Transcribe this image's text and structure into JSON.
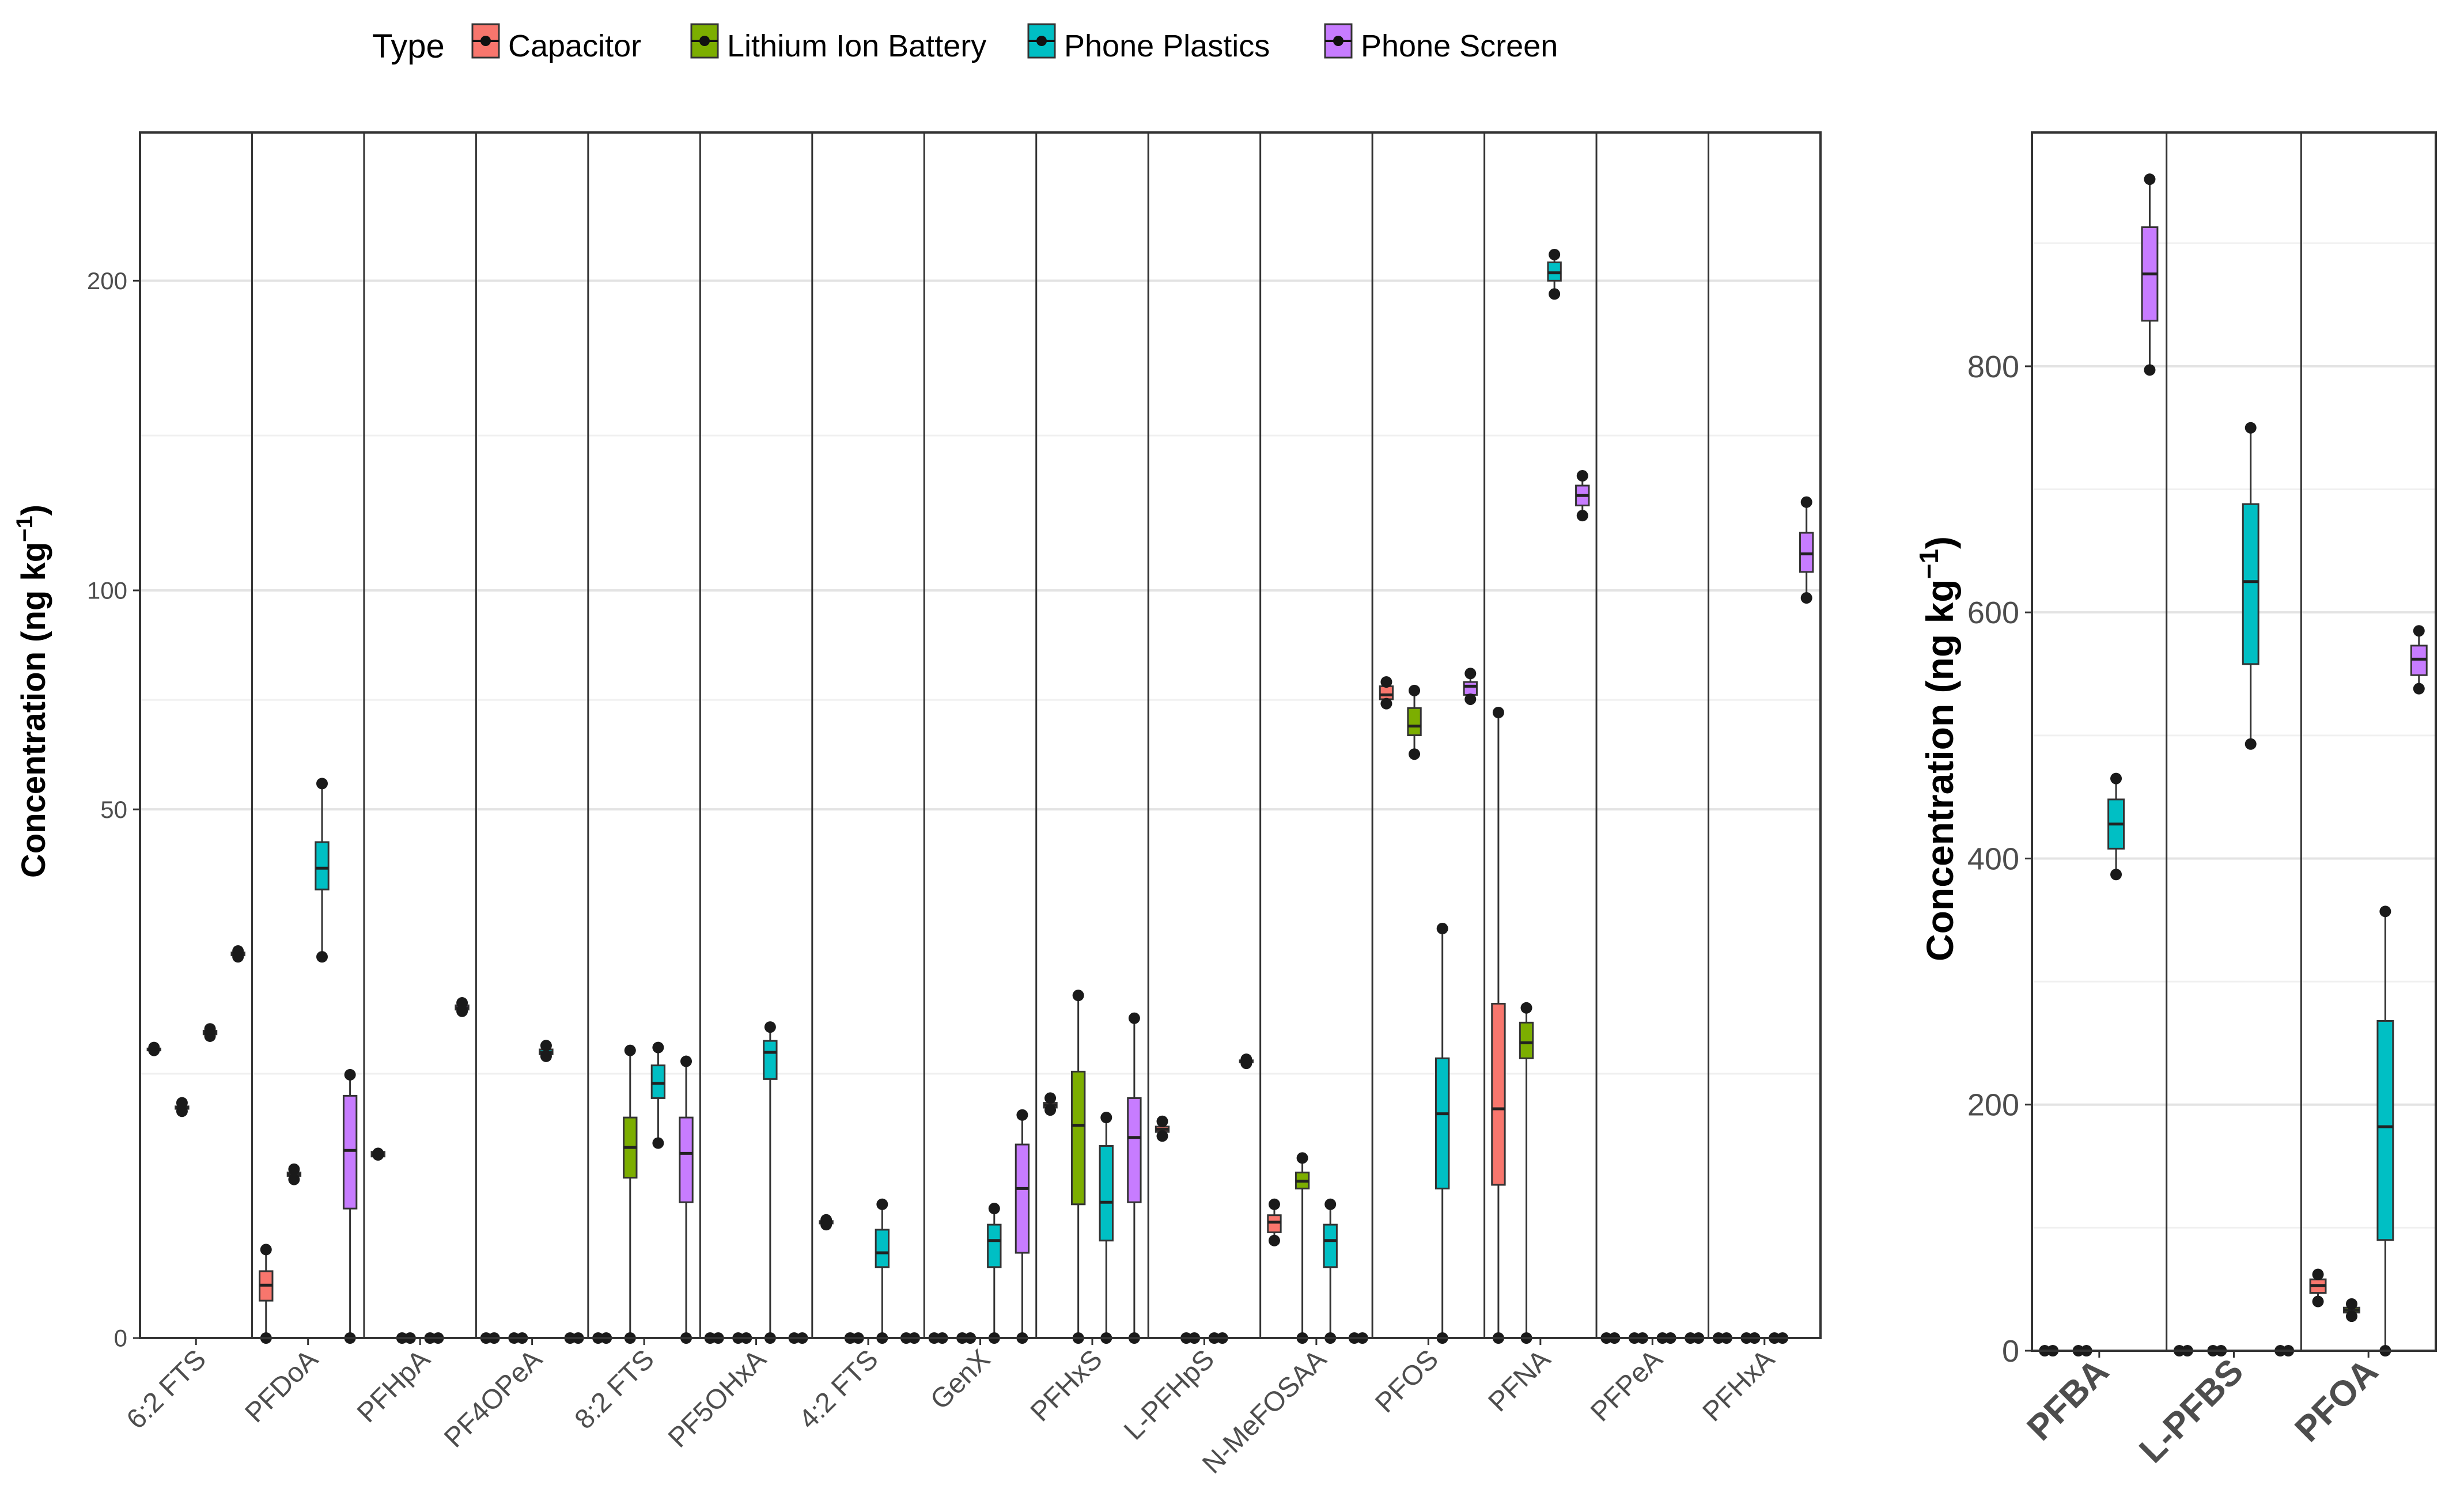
{
  "legend": {
    "title": "Type",
    "position": "top",
    "entries": [
      {
        "label": "Capacitor",
        "color": "#F8766D"
      },
      {
        "label": "Lithium Ion Battery",
        "color": "#7CAE00"
      },
      {
        "label": "Phone Plastics",
        "color": "#00BFC4"
      },
      {
        "label": "Phone Screen",
        "color": "#C77CFF"
      }
    ]
  },
  "chart_data": [
    {
      "type": "boxplot",
      "panel": "left",
      "ylabel_main": "Concentration (ng kg",
      "ylabel_sup": "−1",
      "ylabel_close": ")",
      "y_scale": "sqrt",
      "ylim": [
        0,
        260
      ],
      "y_ticks": [
        0,
        50,
        100,
        200
      ],
      "y_tick_labels": [
        "0",
        "50",
        "100",
        "200"
      ],
      "grid": true,
      "categories": [
        "6:2 FTS",
        "PFDoA",
        "PFHpA",
        "PF4OPeA",
        "8:2 FTS",
        "PF5OHxA",
        "4:2 FTS",
        "GenX",
        "PFHxS",
        "L-PFHpS",
        "N-MeFOSAA",
        "PFOS",
        "PFNA",
        "PFPeA",
        "PFHxA"
      ],
      "series": [
        {
          "name": "Capacitor",
          "boxes": [
            {
              "category": "6:2 FTS",
              "min": 14.8,
              "q1": 14.8,
              "median": 14.9,
              "q3": 15.0,
              "max": 15.1
            },
            {
              "category": "PFDoA",
              "min": 0,
              "q1": 0.25,
              "median": 0.5,
              "q3": 0.8,
              "max": 1.4
            },
            {
              "category": "PFHpA",
              "min": 6.0,
              "q1": 6.0,
              "median": 6.05,
              "q3": 6.1,
              "max": 6.1
            },
            {
              "category": "PF4OPeA",
              "min": 0,
              "q1": 0,
              "median": 0,
              "q3": 0,
              "max": 0
            },
            {
              "category": "8:2 FTS",
              "min": 0,
              "q1": 0,
              "median": 0,
              "q3": 0,
              "max": 0
            },
            {
              "category": "PF5OHxA",
              "min": 0,
              "q1": 0,
              "median": 0,
              "q3": 0,
              "max": 0
            },
            {
              "category": "4:2 FTS",
              "min": 2.3,
              "q1": 2.35,
              "median": 2.4,
              "q3": 2.45,
              "max": 2.5
            },
            {
              "category": "GenX",
              "min": 0,
              "q1": 0,
              "median": 0,
              "q3": 0,
              "max": 0
            },
            {
              "category": "PFHxS",
              "min": 9.3,
              "q1": 9.5,
              "median": 9.7,
              "q3": 9.9,
              "max": 10.3
            },
            {
              "category": "L-PFHpS",
              "min": 7.3,
              "q1": 7.6,
              "median": 7.8,
              "q3": 8.0,
              "max": 8.4
            },
            {
              "category": "N-MeFOSAA",
              "min": 1.7,
              "q1": 2.0,
              "median": 2.4,
              "q3": 2.7,
              "max": 3.2
            },
            {
              "category": "PFOS",
              "min": 72,
              "q1": 73,
              "median": 74,
              "q3": 76,
              "max": 77
            },
            {
              "category": "PFNA",
              "min": 0,
              "q1": 4.2,
              "median": 9.4,
              "q3": 20,
              "max": 70
            },
            {
              "category": "PFPeA",
              "min": 0,
              "q1": 0,
              "median": 0,
              "q3": 0,
              "max": 0
            },
            {
              "category": "PFHxA",
              "min": 0,
              "q1": 0,
              "median": 0,
              "q3": 0,
              "max": 0
            }
          ]
        },
        {
          "name": "Lithium Ion Battery",
          "boxes": [
            {
              "category": "6:2 FTS",
              "min": 9.2,
              "q1": 9.4,
              "median": 9.5,
              "q3": 9.6,
              "max": 9.9
            },
            {
              "category": "PFDoA",
              "min": 4.5,
              "q1": 4.7,
              "median": 4.8,
              "q3": 4.9,
              "max": 5.1
            },
            {
              "category": "PFHpA",
              "min": 0,
              "q1": 0,
              "median": 0,
              "q3": 0,
              "max": 0
            },
            {
              "category": "PF4OPeA",
              "min": 0,
              "q1": 0,
              "median": 0,
              "q3": 0,
              "max": 0
            },
            {
              "category": "8:2 FTS",
              "min": 0,
              "q1": 4.6,
              "median": 6.5,
              "q3": 8.7,
              "max": 14.8
            },
            {
              "category": "PF5OHxA",
              "min": 0,
              "q1": 0,
              "median": 0,
              "q3": 0,
              "max": 0
            },
            {
              "category": "4:2 FTS",
              "min": 0,
              "q1": 0,
              "median": 0,
              "q3": 0,
              "max": 0
            },
            {
              "category": "GenX",
              "min": 0,
              "q1": 0,
              "median": 0,
              "q3": 0,
              "max": 0
            },
            {
              "category": "PFHxS",
              "min": 0,
              "q1": 3.2,
              "median": 8.1,
              "q3": 12.7,
              "max": 21
            },
            {
              "category": "L-PFHpS",
              "min": 0,
              "q1": 0,
              "median": 0,
              "q3": 0,
              "max": 0
            },
            {
              "category": "N-MeFOSAA",
              "min": 0,
              "q1": 4.0,
              "median": 4.4,
              "q3": 4.9,
              "max": 5.8
            },
            {
              "category": "PFOS",
              "min": 61,
              "q1": 65,
              "median": 67,
              "q3": 71,
              "max": 75
            },
            {
              "category": "PFNA",
              "min": 0,
              "q1": 14.0,
              "median": 15.6,
              "q3": 17.8,
              "max": 19.5
            },
            {
              "category": "PFPeA",
              "min": 0,
              "q1": 0,
              "median": 0,
              "q3": 0,
              "max": 0
            },
            {
              "category": "PFHxA",
              "min": 0,
              "q1": 0,
              "median": 0,
              "q3": 0,
              "max": 0
            }
          ]
        },
        {
          "name": "Phone Plastics",
          "boxes": [
            {
              "category": "6:2 FTS",
              "min": 16.3,
              "q1": 16.5,
              "median": 16.7,
              "q3": 16.9,
              "max": 17.1
            },
            {
              "category": "PFDoA",
              "min": 26,
              "q1": 36,
              "median": 39.5,
              "q3": 44,
              "max": 55
            },
            {
              "category": "PFHpA",
              "min": 0,
              "q1": 0,
              "median": 0,
              "q3": 0,
              "max": 0
            },
            {
              "category": "PF4OPeA",
              "min": 14.2,
              "q1": 14.4,
              "median": 14.6,
              "q3": 14.9,
              "max": 15.3
            },
            {
              "category": "8:2 FTS",
              "min": 6.8,
              "q1": 10.3,
              "median": 11.6,
              "q3": 13.3,
              "max": 15.1
            },
            {
              "category": "PF5OHxA",
              "min": 0,
              "q1": 12.0,
              "median": 14.6,
              "q3": 15.8,
              "max": 17.3
            },
            {
              "category": "4:2 FTS",
              "min": 0,
              "q1": 0.9,
              "median": 1.3,
              "q3": 2.1,
              "max": 3.2
            },
            {
              "category": "GenX",
              "min": 0,
              "q1": 0.9,
              "median": 1.7,
              "q3": 2.3,
              "max": 3.0
            },
            {
              "category": "PFHxS",
              "min": 0,
              "q1": 1.7,
              "median": 3.3,
              "q3": 6.6,
              "max": 8.7
            },
            {
              "category": "L-PFHpS",
              "min": 0,
              "q1": 0,
              "median": 0,
              "q3": 0,
              "max": 0
            },
            {
              "category": "N-MeFOSAA",
              "min": 0,
              "q1": 0.9,
              "median": 1.7,
              "q3": 2.3,
              "max": 3.2
            },
            {
              "category": "PFOS",
              "min": 0,
              "q1": 4.0,
              "median": 9.0,
              "q3": 14.0,
              "max": 30
            },
            {
              "category": "PFNA",
              "min": 195,
              "q1": 200,
              "median": 203,
              "q3": 207,
              "max": 210
            },
            {
              "category": "PFPeA",
              "min": 0,
              "q1": 0,
              "median": 0,
              "q3": 0,
              "max": 0
            },
            {
              "category": "PFHxA",
              "min": 0,
              "q1": 0,
              "median": 0,
              "q3": 0,
              "max": 0
            }
          ]
        },
        {
          "name": "Phone Screen",
          "boxes": [
            {
              "category": "6:2 FTS",
              "min": 26.0,
              "q1": 26.2,
              "median": 26.4,
              "q3": 26.6,
              "max": 26.8
            },
            {
              "category": "PFDoA",
              "min": 0,
              "q1": 3.0,
              "median": 6.3,
              "q3": 10.5,
              "max": 12.4
            },
            {
              "category": "PFHpA",
              "min": 19.1,
              "q1": 19.3,
              "median": 19.5,
              "q3": 19.8,
              "max": 20.1
            },
            {
              "category": "PF4OPeA",
              "min": 0,
              "q1": 0,
              "median": 0,
              "q3": 0,
              "max": 0
            },
            {
              "category": "8:2 FTS",
              "min": 0,
              "q1": 3.3,
              "median": 6.1,
              "q3": 8.7,
              "max": 13.7
            },
            {
              "category": "PF5OHxA",
              "min": 0,
              "q1": 0,
              "median": 0,
              "q3": 0,
              "max": 0
            },
            {
              "category": "4:2 FTS",
              "min": 0,
              "q1": 0,
              "median": 0,
              "q3": 0,
              "max": 0
            },
            {
              "category": "GenX",
              "min": 0,
              "q1": 1.3,
              "median": 4.0,
              "q3": 6.7,
              "max": 8.9
            },
            {
              "category": "PFHxS",
              "min": 0,
              "q1": 3.3,
              "median": 7.2,
              "q3": 10.3,
              "max": 18.3
            },
            {
              "category": "L-PFHpS",
              "min": 13.5,
              "q1": 13.6,
              "median": 13.7,
              "q3": 13.8,
              "max": 13.9
            },
            {
              "category": "N-MeFOSAA",
              "min": 0,
              "q1": 0,
              "median": 0,
              "q3": 0,
              "max": 0
            },
            {
              "category": "PFOS",
              "min": 73,
              "q1": 74,
              "median": 76,
              "q3": 77,
              "max": 79
            },
            {
              "category": "PFNA",
              "min": 121,
              "q1": 124,
              "median": 127,
              "q3": 130,
              "max": 133
            },
            {
              "category": "PFPeA",
              "min": 0,
              "q1": 0,
              "median": 0,
              "q3": 0,
              "max": 0
            },
            {
              "category": "PFHxA",
              "min": 98,
              "q1": 105,
              "median": 110,
              "q3": 116,
              "max": 125
            }
          ]
        }
      ]
    },
    {
      "type": "boxplot",
      "panel": "right",
      "ylabel_main": "Concentration (ng kg",
      "ylabel_sup": "−1",
      "ylabel_close": ")",
      "y_scale": "linear",
      "ylim": [
        0,
        990
      ],
      "y_ticks": [
        0,
        200,
        400,
        600,
        800
      ],
      "y_tick_labels": [
        "0",
        "200",
        "400",
        "600",
        "800"
      ],
      "grid": true,
      "categories": [
        "PFBA",
        "L-PFBS",
        "PFOA"
      ],
      "series": [
        {
          "name": "Capacitor",
          "boxes": [
            {
              "category": "PFBA",
              "min": 0,
              "q1": 0,
              "median": 0,
              "q3": 0,
              "max": 0
            },
            {
              "category": "L-PFBS",
              "min": 0,
              "q1": 0,
              "median": 0,
              "q3": 0,
              "max": 0
            },
            {
              "category": "PFOA",
              "min": 40,
              "q1": 47,
              "median": 53,
              "q3": 58,
              "max": 62
            }
          ]
        },
        {
          "name": "Lithium Ion Battery",
          "boxes": [
            {
              "category": "PFBA",
              "min": 0,
              "q1": 0,
              "median": 0,
              "q3": 0,
              "max": 0
            },
            {
              "category": "L-PFBS",
              "min": 0,
              "q1": 0,
              "median": 0,
              "q3": 0,
              "max": 0
            },
            {
              "category": "PFOA",
              "min": 28,
              "q1": 31,
              "median": 33,
              "q3": 35,
              "max": 38
            }
          ]
        },
        {
          "name": "Phone Plastics",
          "boxes": [
            {
              "category": "PFBA",
              "min": 387,
              "q1": 408,
              "median": 428,
              "q3": 448,
              "max": 465
            },
            {
              "category": "L-PFBS",
              "min": 493,
              "q1": 558,
              "median": 625,
              "q3": 688,
              "max": 750
            },
            {
              "category": "PFOA",
              "min": 0,
              "q1": 90,
              "median": 182,
              "q3": 268,
              "max": 357
            }
          ]
        },
        {
          "name": "Phone Screen",
          "boxes": [
            {
              "category": "PFBA",
              "min": 797,
              "q1": 837,
              "median": 875,
              "q3": 913,
              "max": 952
            },
            {
              "category": "L-PFBS",
              "min": 0,
              "q1": 0,
              "median": 0,
              "q3": 0,
              "max": 0
            },
            {
              "category": "PFOA",
              "min": 538,
              "q1": 549,
              "median": 562,
              "q3": 573,
              "max": 585
            }
          ]
        }
      ]
    }
  ]
}
